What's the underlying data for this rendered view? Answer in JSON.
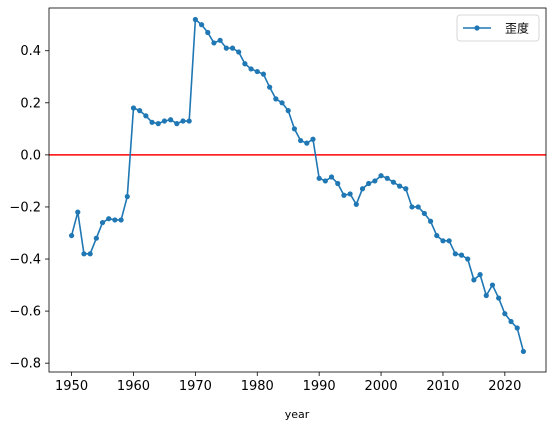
{
  "chart_data": {
    "type": "line",
    "title": "",
    "xlabel": "year",
    "ylabel": "",
    "xlim": [
      1946.35,
      2026.65
    ],
    "ylim": [
      -0.8339,
      0.5641
    ],
    "x_ticks": [
      1950,
      1960,
      1970,
      1980,
      1990,
      2000,
      2010,
      2020
    ],
    "y_ticks": [
      -0.8,
      -0.6,
      -0.4,
      -0.2,
      0.0,
      0.2,
      0.4
    ],
    "y_tick_labels": [
      "−0.8",
      "−0.6",
      "−0.4",
      "−0.2",
      "0.0",
      "0.2",
      "0.4"
    ],
    "grid": false,
    "legend_position": "upper-right",
    "reference_line": {
      "y": 0.0,
      "color": "#ff0000"
    },
    "series": [
      {
        "name": "歪度",
        "color": "#1f77b4",
        "marker": "circle",
        "x": [
          1950,
          1951,
          1952,
          1953,
          1954,
          1955,
          1956,
          1957,
          1958,
          1959,
          1960,
          1961,
          1962,
          1963,
          1964,
          1965,
          1966,
          1967,
          1968,
          1969,
          1970,
          1971,
          1972,
          1973,
          1974,
          1975,
          1976,
          1977,
          1978,
          1979,
          1980,
          1981,
          1982,
          1983,
          1984,
          1985,
          1986,
          1987,
          1988,
          1989,
          1990,
          1991,
          1992,
          1993,
          1994,
          1995,
          1996,
          1997,
          1998,
          1999,
          2000,
          2001,
          2002,
          2003,
          2004,
          2005,
          2006,
          2007,
          2008,
          2009,
          2010,
          2011,
          2012,
          2013,
          2014,
          2015,
          2016,
          2017,
          2018,
          2019,
          2020,
          2021,
          2022,
          2023
        ],
        "y": [
          -0.31,
          -0.22,
          -0.38,
          -0.38,
          -0.32,
          -0.26,
          -0.245,
          -0.25,
          -0.25,
          -0.16,
          0.18,
          0.17,
          0.15,
          0.125,
          0.12,
          0.13,
          0.135,
          0.12,
          0.13,
          0.13,
          0.52,
          0.5,
          0.47,
          0.43,
          0.44,
          0.41,
          0.41,
          0.395,
          0.35,
          0.33,
          0.32,
          0.31,
          0.26,
          0.215,
          0.2,
          0.17,
          0.1,
          0.055,
          0.045,
          0.06,
          -0.09,
          -0.1,
          -0.085,
          -0.11,
          -0.155,
          -0.15,
          -0.19,
          -0.13,
          -0.11,
          -0.1,
          -0.08,
          -0.09,
          -0.105,
          -0.12,
          -0.13,
          -0.2,
          -0.2,
          -0.225,
          -0.255,
          -0.31,
          -0.33,
          -0.33,
          -0.38,
          -0.385,
          -0.4,
          -0.48,
          -0.46,
          -0.54,
          -0.5,
          -0.55,
          -0.61,
          -0.64,
          -0.665,
          -0.755
        ]
      }
    ]
  }
}
